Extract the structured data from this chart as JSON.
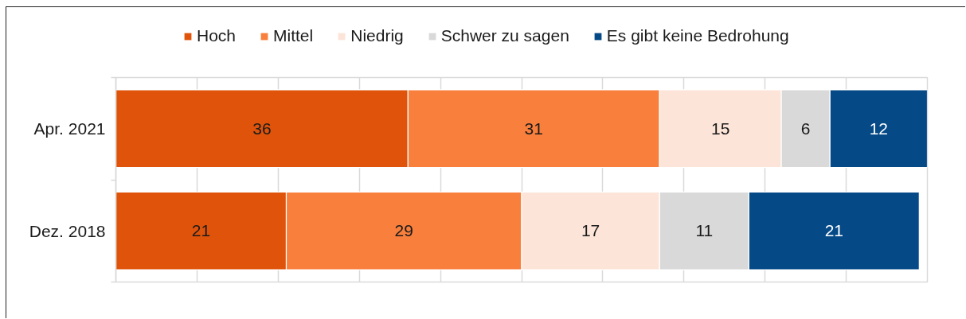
{
  "chart_data": {
    "type": "bar",
    "orientation": "horizontal",
    "stacked": true,
    "categories": [
      "Apr. 2021",
      "Dez. 2018"
    ],
    "series": [
      {
        "name": "Hoch",
        "color": "#df540a",
        "values": [
          36,
          21
        ]
      },
      {
        "name": "Mittel",
        "color": "#f97f3c",
        "values": [
          31,
          29
        ]
      },
      {
        "name": "Niedrig",
        "color": "#fde4d8",
        "values": [
          15,
          17
        ]
      },
      {
        "name": "Schwer zu sagen",
        "color": "#d9d9d9",
        "values": [
          6,
          11
        ]
      },
      {
        "name": "Es gibt keine Bedrohung",
        "color": "#054987",
        "values": [
          12,
          21
        ]
      }
    ],
    "data_labels": true,
    "xlim": [
      0,
      100
    ],
    "xticks": [
      {
        "value": 0,
        "label": null
      },
      {
        "value": 10,
        "label": null
      },
      {
        "value": 20,
        "label": null
      },
      {
        "value": 30,
        "label": null
      },
      {
        "value": 40,
        "label": null
      },
      {
        "value": 50,
        "label": null
      },
      {
        "value": 60,
        "label": null
      },
      {
        "value": 70,
        "label": null
      },
      {
        "value": 80,
        "label": null
      },
      {
        "value": 90,
        "label": null
      },
      {
        "value": 100,
        "label": null
      }
    ],
    "grid": "x",
    "legend": "top",
    "tick_labels": "y"
  }
}
